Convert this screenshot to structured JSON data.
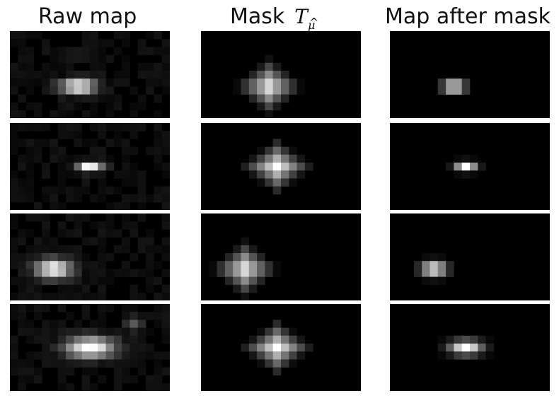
{
  "columns": [
    {
      "id": "raw",
      "title": "Raw map"
    },
    {
      "id": "mask",
      "title": "Mask",
      "symbol": "T",
      "symbol_sub": "μ",
      "symbol_hat": "^"
    },
    {
      "id": "after",
      "title": "Map after mask"
    }
  ],
  "rows": 4
}
